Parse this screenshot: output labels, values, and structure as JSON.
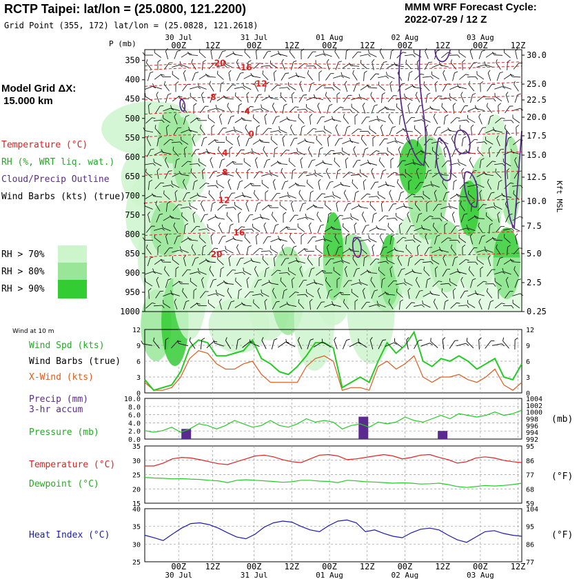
{
  "header": {
    "title": "RCTP Taipei:  lat/lon = (25.0800, 121.2200)",
    "grid_point": "Grid Point (355, 172) lat/lon = (25.0828, 121.2618)",
    "cycle_title": "MMM WRF Forecast Cycle:",
    "cycle_value": "2022-07-29 / 12  Z"
  },
  "model_grid": {
    "label": "Model Grid ΔX:",
    "value": "15.000 km"
  },
  "legend": {
    "temperature": "Temperature (°C)",
    "rh": "RH (%, WRT liq. wat.)",
    "cloud": "Cloud/Precip Outline",
    "wind": "Wind Barbs (kts) (true)",
    "rh70": "RH > 70%",
    "rh80": "RH > 80%",
    "rh90": "RH > 90%"
  },
  "colors": {
    "rh70": "#ccf5cc",
    "rh80": "#99e699",
    "rh90": "#33cc33",
    "temp": "#e02020",
    "cloud": "#5b2a8e",
    "green": "#22cc22",
    "orange": "#e05a1a",
    "purple": "#5b2a8e",
    "blue": "#1a1ab0"
  },
  "time_axis": {
    "hour_labels": [
      "00Z",
      "12Z",
      "00Z",
      "12Z",
      "00Z",
      "12Z",
      "00Z",
      "12Z",
      "00Z",
      "12Z"
    ],
    "day_labels": [
      "30 Jul",
      "31 Jul",
      "01 Aug",
      "02 Aug",
      "03 Aug"
    ],
    "p_label": "P (mb)"
  },
  "bottom_labels": {
    "wind10": "Wind at 10 m",
    "wind_spd": "Wind Spd (kts)",
    "wind_barbs": "Wind Barbs (true)",
    "xwind": "X-Wind (kts)",
    "precip": "Precip (mm)",
    "precip2": "3-hr accum",
    "pressure": "Pressure (mb)",
    "temperature": "Temperature (°C)",
    "dewpoint": "Dewpoint (°C)",
    "heat_index": "Heat Index (°C)",
    "mb_unit": "(mb)",
    "f_unit1": "(°F)",
    "f_unit2": "(°F)",
    "kft": "Kft MSL"
  },
  "chart_data": [
    {
      "type": "heatmap",
      "title": "Vertical cross-section (time-height)",
      "ylabel": "P (mb)",
      "y_ticks_left": [
        "350",
        "400",
        "450",
        "500",
        "550",
        "600",
        "650",
        "700",
        "750",
        "800",
        "850",
        "900",
        "950",
        "1000"
      ],
      "y_ticks_right": [
        "30.0",
        "25.0",
        "22.5",
        "20.0",
        "17.5",
        "15.0",
        "12.5",
        "10.0",
        "7.5",
        "5.0",
        "2.5",
        "0.25"
      ],
      "right_axis_label": "Kft MSL",
      "temp_contour_labels": [
        {
          "label": "-20",
          "t": 0.175,
          "p": 357
        },
        {
          "label": "-16",
          "t": 0.245,
          "p": 368
        },
        {
          "label": "-12",
          "t": 0.285,
          "p": 410
        },
        {
          "label": "-8",
          "t": 0.165,
          "p": 445
        },
        {
          "label": "-4",
          "t": 0.255,
          "p": 482
        },
        {
          "label": "0",
          "t": 0.275,
          "p": 541
        },
        {
          "label": "4",
          "t": 0.205,
          "p": 590
        },
        {
          "label": "8",
          "t": 0.205,
          "p": 640
        },
        {
          "label": "12",
          "t": 0.195,
          "p": 712
        },
        {
          "label": "16",
          "t": 0.235,
          "p": 796
        },
        {
          "label": "20",
          "t": 0.175,
          "p": 852
        }
      ]
    },
    {
      "type": "line",
      "title": "Wind at 10 m",
      "y_ticks": [
        "12",
        "9",
        "6",
        "3",
        "0"
      ],
      "ylim": [
        0,
        12
      ],
      "series": [
        {
          "name": "Wind Spd (kts)",
          "values": [
            2.5,
            0.5,
            1,
            1.5,
            4,
            8.5,
            10,
            9.5,
            7,
            7,
            7.5,
            8,
            10,
            6.5,
            5.5,
            4,
            3.5,
            5,
            7,
            9.5,
            9.5,
            8.5,
            1,
            2,
            3,
            2,
            6,
            9.5,
            7.5,
            9,
            11.5,
            6,
            5,
            6.5,
            6,
            7,
            6,
            4.5,
            5.5,
            6.5,
            3,
            2.5,
            5.5
          ]
        },
        {
          "name": "X-Wind (kts)",
          "values": [
            2,
            0.5,
            0.5,
            1,
            3,
            6.5,
            8,
            7.5,
            5.5,
            4.5,
            4.5,
            5.5,
            6,
            3.5,
            2,
            2,
            2,
            2,
            5,
            6.5,
            7,
            6,
            0.5,
            1,
            1,
            0.5,
            5,
            6,
            4.5,
            5.5,
            7,
            3,
            2,
            3,
            3,
            3.5,
            2.5,
            2,
            3,
            4.5,
            1.5,
            0.5,
            2
          ]
        }
      ]
    },
    {
      "type": "bar",
      "title": "Precip (mm) 3-hr accum / Pressure (mb)",
      "y_ticks": [
        "10.0",
        "8.0",
        "6.0",
        "4.0",
        "2.0",
        "0.0"
      ],
      "ylim": [
        0,
        10
      ],
      "y2_ticks": [
        "1004",
        "1002",
        "1000",
        "998",
        "996",
        "994",
        "992"
      ],
      "y2lim": [
        992,
        1004
      ],
      "precip_bars": [
        {
          "t": 0.11,
          "value": 2.5
        },
        {
          "t": 0.58,
          "value": 5.5
        },
        {
          "t": 0.79,
          "value": 2.0
        }
      ],
      "pressure": [
        994.5,
        994,
        994.5,
        995.5,
        994,
        995,
        996.5,
        996,
        995,
        996,
        997.5,
        996.5,
        995.5,
        996,
        997.5,
        996,
        995.5,
        996.5,
        998,
        997,
        997.5,
        997,
        995,
        996,
        996.5,
        995.5,
        997,
        996.5,
        997,
        998.5,
        997.5,
        997,
        998,
        999,
        998,
        999.5,
        999,
        998.5,
        999,
        1000,
        999,
        999.5,
        1000.5
      ]
    },
    {
      "type": "line",
      "title": "Temperature / Dewpoint",
      "y_ticks": [
        "35",
        "30",
        "25",
        "20",
        "15"
      ],
      "ylim": [
        15,
        35
      ],
      "y2_ticks": [
        "95",
        "86",
        "77",
        "68",
        "59"
      ],
      "series": [
        {
          "name": "Temperature (°C)",
          "values": [
            28,
            28,
            29,
            30.5,
            31,
            30.8,
            30.2,
            29.5,
            28.8,
            28.5,
            29.5,
            30.5,
            31.5,
            31.8,
            31.2,
            30.2,
            29.5,
            29.2,
            30.5,
            31.8,
            32,
            31.5,
            30.2,
            30.5,
            31,
            31.5,
            32,
            31.5,
            30.5,
            31,
            31.8,
            32,
            31,
            30.2,
            29,
            29.5,
            30.8,
            31.2,
            30.8,
            30,
            29.5,
            29.2
          ]
        },
        {
          "name": "Dewpoint (°C)",
          "values": [
            24,
            23.8,
            23.7,
            23.5,
            23.6,
            23.4,
            23.3,
            23,
            22.8,
            22.2,
            23,
            23.2,
            23,
            22.8,
            22.6,
            22.3,
            22.5,
            23,
            23,
            22.7,
            22.6,
            22.2,
            23,
            22.8,
            22.5,
            22.4,
            22.2,
            22,
            22.1,
            22,
            21.7,
            21.8,
            22,
            21.5,
            20.8,
            20.5,
            20.8,
            21.2,
            21,
            21.2,
            21.5,
            22
          ]
        }
      ]
    },
    {
      "type": "line",
      "title": "Heat Index",
      "y_ticks": [
        "40",
        "35",
        "30",
        "25"
      ],
      "ylim": [
        25,
        40
      ],
      "y2_ticks": [
        "104",
        "95",
        "86",
        "77"
      ],
      "series": [
        {
          "name": "Heat Index (°C)",
          "values": [
            32.5,
            31.8,
            31,
            32.8,
            34.5,
            35.8,
            36,
            35.5,
            34.5,
            33.2,
            32,
            31.5,
            32.8,
            34.8,
            36,
            36.5,
            36.2,
            35,
            34,
            33.5,
            35.2,
            36.5,
            36.8,
            36,
            33.5,
            34,
            33,
            32.2,
            31.8,
            33.2,
            34.2,
            34.5,
            34,
            32.5,
            31.2,
            30.5,
            32,
            33.5,
            33.8,
            33,
            32.5,
            32.2
          ]
        }
      ]
    }
  ]
}
